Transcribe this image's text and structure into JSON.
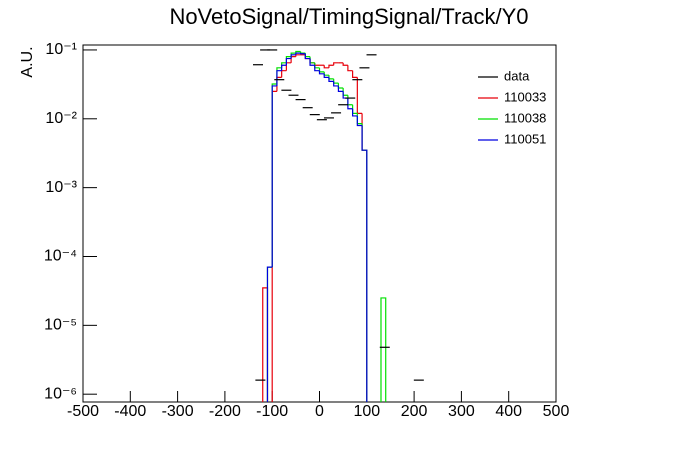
{
  "chart_data": {
    "type": "histogram",
    "title": "NoVetoSignal/TimingSignal/Track/Y0",
    "y_label": "A.U.",
    "log_y": true,
    "xlim": [
      -500,
      500
    ],
    "xticks": [
      -500,
      -400,
      -300,
      -200,
      -100,
      0,
      100,
      200,
      300,
      400,
      500
    ],
    "ylim": [
      7.7e-07,
      0.118
    ],
    "yticks": [
      {
        "value": 1e-06,
        "label": "10⁻⁶"
      },
      {
        "value": 1e-05,
        "label": "10⁻⁵"
      },
      {
        "value": 0.0001,
        "label": "10⁻⁴"
      },
      {
        "value": 0.001,
        "label": "10⁻³"
      },
      {
        "value": 0.01,
        "label": "10⁻²"
      },
      {
        "value": 0.1,
        "label": "10⁻¹"
      }
    ],
    "legend": "top-right",
    "bins": [
      -130,
      -120,
      -110,
      -100,
      -90,
      -80,
      -70,
      -60,
      -50,
      -40,
      -30,
      -20,
      -10,
      0,
      10,
      20,
      30,
      40,
      50,
      60,
      70,
      80,
      90,
      100,
      110,
      120,
      130,
      140
    ],
    "points": {
      "name": "data",
      "color": "#000000",
      "x": [
        -125,
        -130,
        -115,
        -100,
        -85,
        -70,
        -55,
        -40,
        -25,
        -10,
        5,
        20,
        35,
        50,
        65,
        80,
        95,
        110,
        138,
        210
      ],
      "values": [
        1.6e-06,
        0.061,
        0.1,
        0.1,
        0.037,
        0.026,
        0.022,
        0.019,
        0.0145,
        0.0115,
        0.0097,
        0.0103,
        0.0122,
        0.016,
        0.02,
        0.037,
        0.055,
        0.085,
        4.8e-06,
        1.6e-06
      ]
    },
    "series": [
      {
        "name": "110033",
        "color": "#e8000b",
        "values": [
          null,
          3.5e-05,
          null,
          0.025,
          0.04,
          0.05,
          0.065,
          0.08,
          0.085,
          0.085,
          0.075,
          0.065,
          0.06,
          0.06,
          0.055,
          0.06,
          0.065,
          0.065,
          0.06,
          0.05,
          0.04,
          0.012,
          0.0035,
          null,
          null,
          null,
          null
        ]
      },
      {
        "name": "110038",
        "color": "#00e000",
        "values": [
          null,
          null,
          7e-05,
          0.032,
          0.055,
          0.065,
          0.08,
          0.09,
          0.095,
          0.09,
          0.08,
          0.065,
          0.055,
          0.048,
          0.043,
          0.038,
          0.033,
          0.028,
          0.022,
          0.016,
          0.012,
          0.0085,
          0.0035,
          null,
          null,
          null,
          2.5e-05
        ]
      },
      {
        "name": "110051",
        "color": "#0000e0",
        "values": [
          null,
          null,
          7e-05,
          0.03,
          0.05,
          0.06,
          0.075,
          0.085,
          0.09,
          0.088,
          0.075,
          0.06,
          0.05,
          0.045,
          0.04,
          0.035,
          0.03,
          0.025,
          0.02,
          0.014,
          0.011,
          0.008,
          0.0035,
          null,
          null,
          null,
          null
        ]
      }
    ]
  }
}
